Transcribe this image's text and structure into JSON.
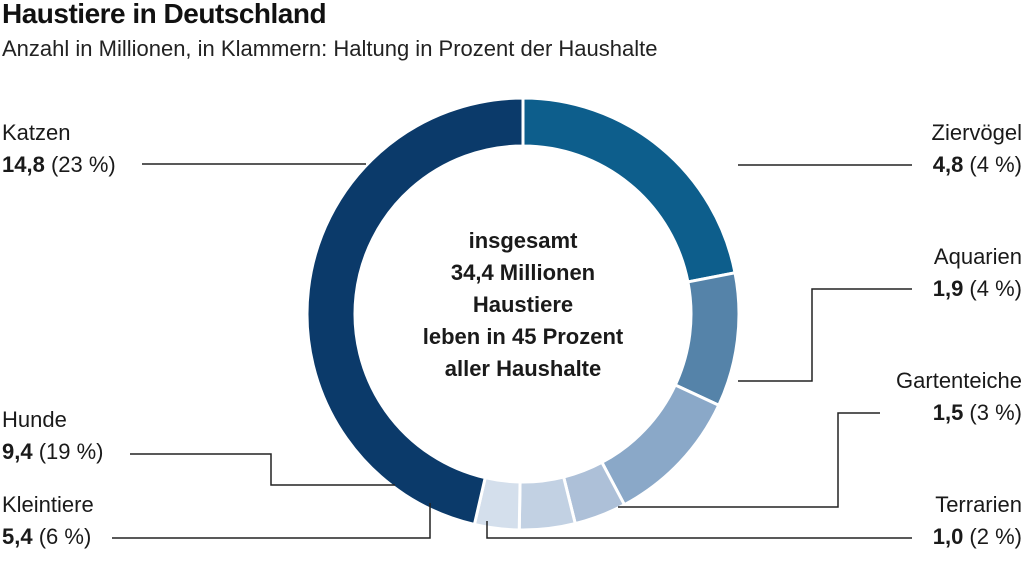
{
  "chart_data": {
    "type": "pie",
    "title": "Haustiere in Deutschland",
    "subtitle": "Anzahl in Millionen, in Klammern: Haltung in Prozent der Haushalte",
    "center_text": [
      "insgesamt",
      "34,4 Millionen",
      "Haustiere",
      "leben in 45 Prozent",
      "aller Haushalte"
    ],
    "slices": [
      {
        "name": "Ziervögel",
        "value": 4.8,
        "value_label": "4,8",
        "pct_label": "(4 %)",
        "color": "#0d5e8c"
      },
      {
        "name": "Aquarien",
        "value": 1.9,
        "value_label": "1,9",
        "pct_label": "(4 %)",
        "color": "#5583a9"
      },
      {
        "name": "Gartenteiche",
        "value": 1.5,
        "value_label": "1,5",
        "pct_label": "(3 %)",
        "color": "#8aa8c8"
      },
      {
        "name": "Terrarien",
        "value": 1.0,
        "value_label": "1,0",
        "pct_label": "(2 %)",
        "color": "#adc0d8"
      },
      {
        "name": "Kleintiere",
        "value": 5.4,
        "value_label": "5,4",
        "pct_label": "(6 %)",
        "color": "#c2d1e3"
      },
      {
        "name": "Hunde",
        "value": 9.4,
        "value_label": "9,4",
        "pct_label": "(19 %)",
        "color": "#d4dfec"
      },
      {
        "name": "Katzen",
        "value": 14.8,
        "value_label": "14,8",
        "pct_label": "(23 %)",
        "color": "#0b3a6a"
      }
    ],
    "legend": "none"
  }
}
